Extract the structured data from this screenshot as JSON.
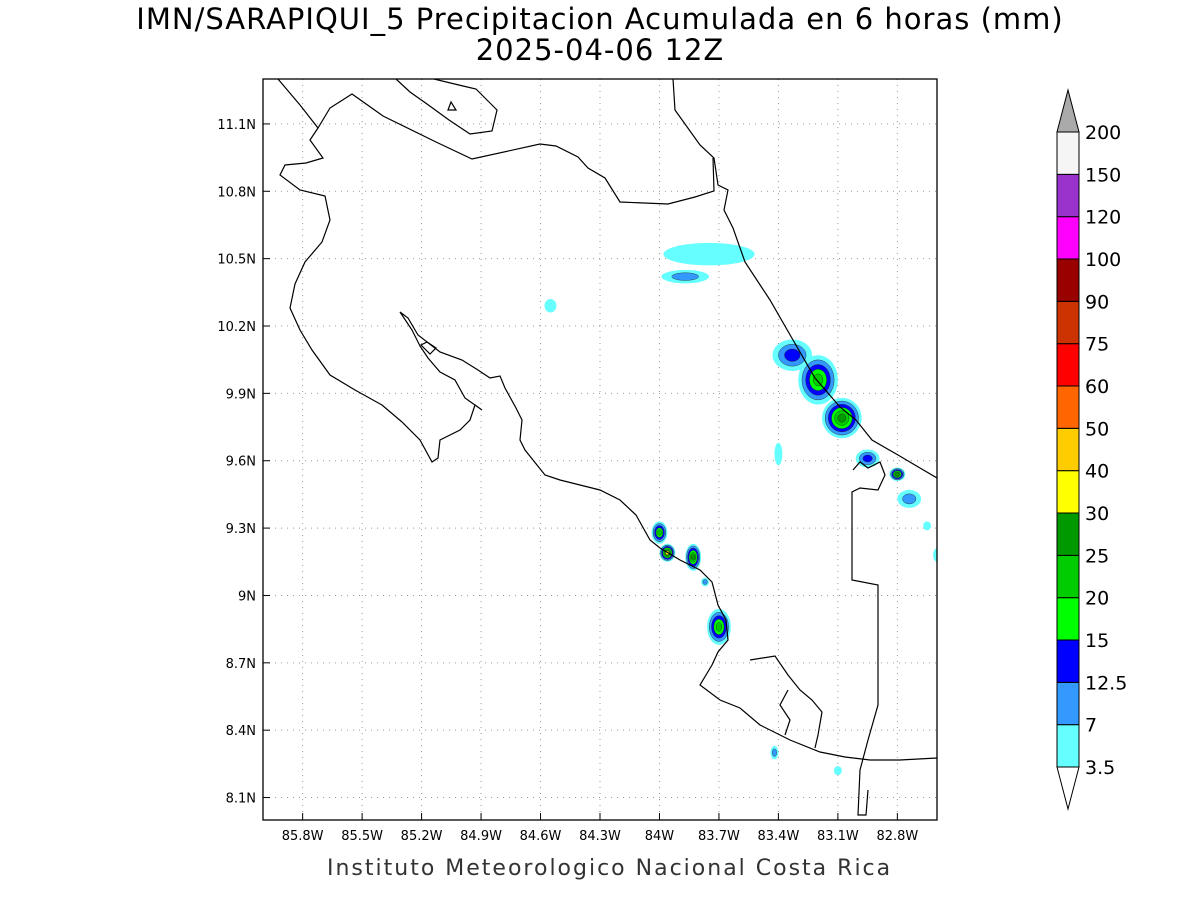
{
  "title_line1": "IMN/SARAPIQUI_5 Precipitacion Acumulada en 6 horas (mm)",
  "title_line2": "2025-04-06 12Z",
  "footer": "Instituto Meteorologico Nacional Costa Rica",
  "map": {
    "lon_range": [
      -86.0,
      -82.6
    ],
    "lat_range": [
      8.0,
      11.3
    ],
    "x_ticks": [
      {
        "value": -85.8,
        "label": "85.8W"
      },
      {
        "value": -85.5,
        "label": "85.5W"
      },
      {
        "value": -85.2,
        "label": "85.2W"
      },
      {
        "value": -84.9,
        "label": "84.9W"
      },
      {
        "value": -84.6,
        "label": "84.6W"
      },
      {
        "value": -84.3,
        "label": "84.3W"
      },
      {
        "value": -84.0,
        "label": "84W"
      },
      {
        "value": -83.7,
        "label": "83.7W"
      },
      {
        "value": -83.4,
        "label": "83.4W"
      },
      {
        "value": -83.1,
        "label": "83.1W"
      },
      {
        "value": -82.8,
        "label": "82.8W"
      }
    ],
    "y_ticks": [
      {
        "value": 11.1,
        "label": "11.1N"
      },
      {
        "value": 10.8,
        "label": "10.8N"
      },
      {
        "value": 10.5,
        "label": "10.5N"
      },
      {
        "value": 10.2,
        "label": "10.2N"
      },
      {
        "value": 9.9,
        "label": "9.9N"
      },
      {
        "value": 9.6,
        "label": "9.6N"
      },
      {
        "value": 9.3,
        "label": "9.3N"
      },
      {
        "value": 9.0,
        "label": "9N"
      },
      {
        "value": 8.7,
        "label": "8.7N"
      },
      {
        "value": 8.4,
        "label": "8.4N"
      },
      {
        "value": 8.1,
        "label": "8.1N"
      }
    ],
    "grid": "dotted"
  },
  "colorbar": {
    "levels": [
      {
        "label": "3.5",
        "color": "#66ffff"
      },
      {
        "label": "7",
        "color": "#3399ff"
      },
      {
        "label": "12.5",
        "color": "#0000ff"
      },
      {
        "label": "15",
        "color": "#00ff00"
      },
      {
        "label": "20",
        "color": "#00cc00"
      },
      {
        "label": "25",
        "color": "#009900"
      },
      {
        "label": "30",
        "color": "#ffff00"
      },
      {
        "label": "40",
        "color": "#ffcc00"
      },
      {
        "label": "50",
        "color": "#ff6600"
      },
      {
        "label": "60",
        "color": "#ff0000"
      },
      {
        "label": "75",
        "color": "#cc3300"
      },
      {
        "label": "90",
        "color": "#990000"
      },
      {
        "label": "100",
        "color": "#ff00ff"
      },
      {
        "label": "120",
        "color": "#9933cc"
      },
      {
        "label": "150",
        "color": "#f5f5f5"
      },
      {
        "label": "200",
        "color": "#aaaaaa"
      }
    ]
  },
  "rain_cells": [
    {
      "lon": -83.75,
      "lat": 10.52,
      "rlon": 0.23,
      "rlat": 0.05,
      "max_level": 0
    },
    {
      "lon": -83.87,
      "lat": 10.42,
      "rlon": 0.12,
      "rlat": 0.03,
      "max_level": 1
    },
    {
      "lon": -84.55,
      "lat": 10.29,
      "rlon": 0.03,
      "rlat": 0.03,
      "max_level": 0
    },
    {
      "lon": -83.33,
      "lat": 10.07,
      "rlon": 0.1,
      "rlat": 0.07,
      "max_level": 2
    },
    {
      "lon": -83.2,
      "lat": 9.96,
      "rlon": 0.1,
      "rlat": 0.11,
      "max_level": 4
    },
    {
      "lon": -83.08,
      "lat": 9.79,
      "rlon": 0.1,
      "rlat": 0.09,
      "max_level": 5
    },
    {
      "lon": -82.95,
      "lat": 9.61,
      "rlon": 0.06,
      "rlat": 0.04,
      "max_level": 2
    },
    {
      "lon": -82.8,
      "lat": 9.54,
      "rlon": 0.04,
      "rlat": 0.03,
      "max_level": 5
    },
    {
      "lon": -82.74,
      "lat": 9.43,
      "rlon": 0.06,
      "rlat": 0.04,
      "max_level": 1
    },
    {
      "lon": -83.4,
      "lat": 9.63,
      "rlon": 0.02,
      "rlat": 0.05,
      "max_level": 0
    },
    {
      "lon": -84.0,
      "lat": 9.28,
      "rlon": 0.04,
      "rlat": 0.05,
      "max_level": 4
    },
    {
      "lon": -83.96,
      "lat": 9.19,
      "rlon": 0.04,
      "rlat": 0.04,
      "max_level": 6
    },
    {
      "lon": -83.83,
      "lat": 9.17,
      "rlon": 0.04,
      "rlat": 0.06,
      "max_level": 5
    },
    {
      "lon": -83.77,
      "lat": 9.06,
      "rlon": 0.02,
      "rlat": 0.02,
      "max_level": 1
    },
    {
      "lon": -83.7,
      "lat": 8.86,
      "rlon": 0.06,
      "rlat": 0.08,
      "max_level": 4
    },
    {
      "lon": -83.42,
      "lat": 8.3,
      "rlon": 0.02,
      "rlat": 0.03,
      "max_level": 1
    },
    {
      "lon": -82.65,
      "lat": 9.31,
      "rlon": 0.02,
      "rlat": 0.02,
      "max_level": 0
    },
    {
      "lon": -82.6,
      "lat": 9.18,
      "rlon": 0.02,
      "rlat": 0.03,
      "max_level": 0
    },
    {
      "lon": -83.1,
      "lat": 8.22,
      "rlon": 0.02,
      "rlat": 0.02,
      "max_level": 0
    }
  ]
}
